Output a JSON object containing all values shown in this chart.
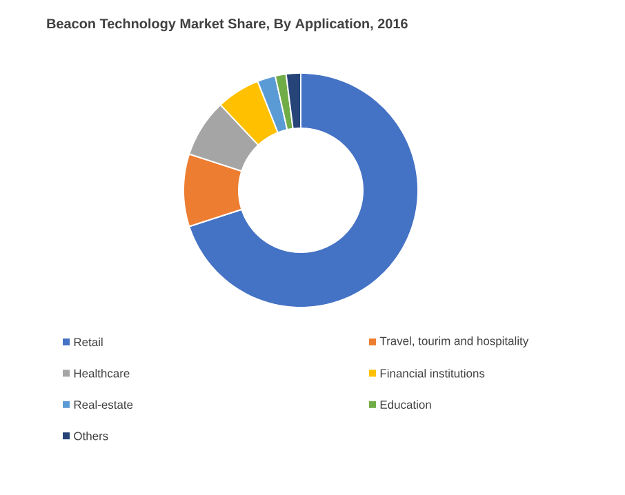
{
  "chart_data": {
    "type": "donut",
    "title": "Beacon Technology Market Share, By Application, 2016",
    "categories": [
      "Retail",
      "Travel, tourim and hospitality",
      "Healthcare",
      "Financial institutions",
      "Real-estate",
      "Education",
      "Others"
    ],
    "values": [
      70,
      10,
      8,
      6,
      2.5,
      1.5,
      2
    ],
    "colors": [
      "#4472c4",
      "#ed7d31",
      "#a5a5a5",
      "#ffc000",
      "#5b9bd5",
      "#70ad47",
      "#264478"
    ],
    "legend": "bottom"
  }
}
